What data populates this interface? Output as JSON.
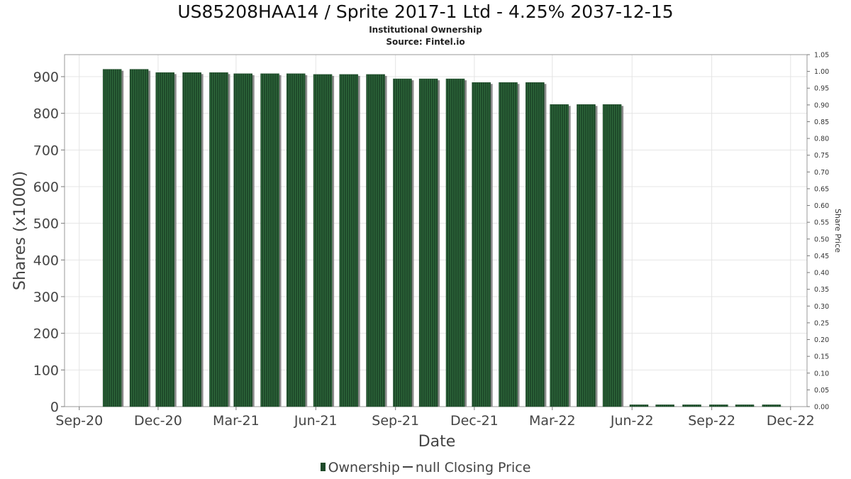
{
  "chart_data": {
    "type": "bar",
    "title": "US85208HAA14 / Sprite 2017-1 Ltd - 4.25% 2037-12-15",
    "subtitles": [
      "Institutional Ownership",
      "Source: Fintel.io"
    ],
    "xlabel": "Date",
    "ylabel": "Shares (x1000)",
    "y2label": "Share Price",
    "ylim": [
      0,
      960
    ],
    "y2lim": [
      0,
      1.05
    ],
    "xlim": [
      "2020-08-15",
      "2022-12-20"
    ],
    "yticks": [
      0,
      100,
      200,
      300,
      400,
      500,
      600,
      700,
      800,
      900
    ],
    "y2ticks": [
      "0.00",
      "0.05",
      "0.10",
      "0.15",
      "0.20",
      "0.25",
      "0.30",
      "0.35",
      "0.40",
      "0.45",
      "0.50",
      "0.55",
      "0.60",
      "0.65",
      "0.70",
      "0.75",
      "0.80",
      "0.85",
      "0.90",
      "0.95",
      "1.00",
      "1.05"
    ],
    "xticks": [
      {
        "label": "Sep-20",
        "date": "2020-09-01"
      },
      {
        "label": "Dec-20",
        "date": "2020-12-01"
      },
      {
        "label": "Mar-21",
        "date": "2021-03-01"
      },
      {
        "label": "Jun-21",
        "date": "2021-06-01"
      },
      {
        "label": "Sep-21",
        "date": "2021-09-01"
      },
      {
        "label": "Dec-21",
        "date": "2021-12-01"
      },
      {
        "label": "Mar-22",
        "date": "2022-03-01"
      },
      {
        "label": "Jun-22",
        "date": "2022-06-01"
      },
      {
        "label": "Sep-22",
        "date": "2022-09-01"
      },
      {
        "label": "Dec-22",
        "date": "2022-12-01"
      }
    ],
    "grid": true,
    "legend_position": "bottom-center",
    "series": [
      {
        "name": "Ownership",
        "color": "#1e4a2a",
        "points": [
          {
            "x": "2020-10-09",
            "y": 920
          },
          {
            "x": "2020-11-09",
            "y": 920
          },
          {
            "x": "2020-12-09",
            "y": 911
          },
          {
            "x": "2021-01-09",
            "y": 911
          },
          {
            "x": "2021-02-09",
            "y": 911
          },
          {
            "x": "2021-03-09",
            "y": 908
          },
          {
            "x": "2021-04-09",
            "y": 908
          },
          {
            "x": "2021-05-09",
            "y": 908
          },
          {
            "x": "2021-06-09",
            "y": 906
          },
          {
            "x": "2021-07-09",
            "y": 906
          },
          {
            "x": "2021-08-09",
            "y": 906
          },
          {
            "x": "2021-09-09",
            "y": 894
          },
          {
            "x": "2021-10-09",
            "y": 894
          },
          {
            "x": "2021-11-09",
            "y": 894
          },
          {
            "x": "2021-12-09",
            "y": 884
          },
          {
            "x": "2022-01-09",
            "y": 884
          },
          {
            "x": "2022-02-09",
            "y": 884
          },
          {
            "x": "2022-03-09",
            "y": 824
          },
          {
            "x": "2022-04-09",
            "y": 824
          },
          {
            "x": "2022-05-09",
            "y": 824
          },
          {
            "x": "2022-06-09",
            "y": 5
          },
          {
            "x": "2022-07-09",
            "y": 5
          },
          {
            "x": "2022-08-09",
            "y": 5
          },
          {
            "x": "2022-09-09",
            "y": 5
          },
          {
            "x": "2022-10-09",
            "y": 5
          },
          {
            "x": "2022-11-09",
            "y": 5
          }
        ]
      }
    ],
    "legend": {
      "ownership_label": "Ownership",
      "price_label": "null Closing Price"
    }
  }
}
